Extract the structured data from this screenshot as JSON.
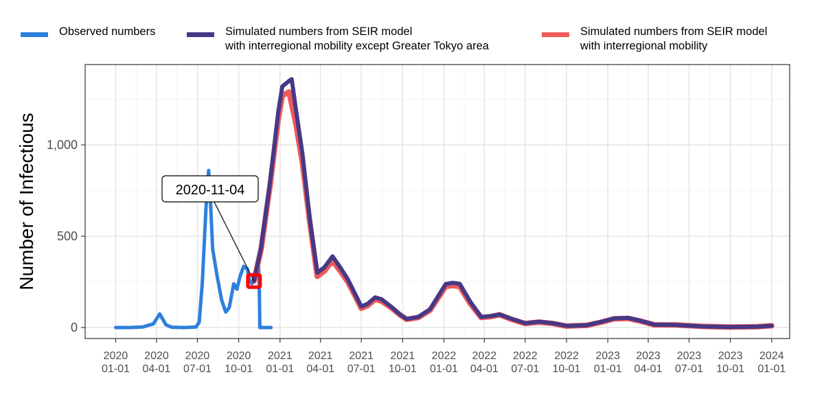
{
  "chart_data": {
    "type": "line",
    "title": "",
    "xlabel": "",
    "ylabel": "Number of Infectious",
    "xlim": [
      "2019-10-25",
      "2024-02-10"
    ],
    "ylim": [
      -60,
      1440
    ],
    "grid": true,
    "legend_position": "top",
    "y_ticks": [
      {
        "value": 0,
        "label": "0"
      },
      {
        "value": 500,
        "label": "500"
      },
      {
        "value": 1000,
        "label": "1,000"
      }
    ],
    "x_ticks": [
      {
        "date": "2020-01-01",
        "label1": "2020",
        "label2": "01-01"
      },
      {
        "date": "2020-04-01",
        "label1": "2020",
        "label2": "04-01"
      },
      {
        "date": "2020-07-01",
        "label1": "2020",
        "label2": "07-01"
      },
      {
        "date": "2020-10-01",
        "label1": "2020",
        "label2": "10-01"
      },
      {
        "date": "2021-01-01",
        "label1": "2021",
        "label2": "01-01"
      },
      {
        "date": "2021-04-01",
        "label1": "2021",
        "label2": "04-01"
      },
      {
        "date": "2021-07-01",
        "label1": "2021",
        "label2": "07-01"
      },
      {
        "date": "2021-10-01",
        "label1": "2021",
        "label2": "10-01"
      },
      {
        "date": "2022-01-01",
        "label1": "2022",
        "label2": "01-01"
      },
      {
        "date": "2022-04-01",
        "label1": "2022",
        "label2": "04-01"
      },
      {
        "date": "2022-07-01",
        "label1": "2022",
        "label2": "07-01"
      },
      {
        "date": "2022-10-01",
        "label1": "2022",
        "label2": "10-01"
      },
      {
        "date": "2023-01-01",
        "label1": "2023",
        "label2": "01-01"
      },
      {
        "date": "2023-04-01",
        "label1": "2023",
        "label2": "04-01"
      },
      {
        "date": "2023-07-01",
        "label1": "2023",
        "label2": "07-01"
      },
      {
        "date": "2023-10-01",
        "label1": "2023",
        "label2": "10-01"
      },
      {
        "date": "2024-01-01",
        "label1": "2024",
        "label2": "01-01"
      }
    ],
    "series": [
      {
        "name": "Observed numbers",
        "color": "#2E7FDC",
        "width": 5,
        "points": [
          [
            "2020-01-01",
            0
          ],
          [
            "2020-02-01",
            0
          ],
          [
            "2020-03-01",
            3
          ],
          [
            "2020-03-25",
            20
          ],
          [
            "2020-04-08",
            75
          ],
          [
            "2020-04-22",
            15
          ],
          [
            "2020-05-05",
            2
          ],
          [
            "2020-06-01",
            0
          ],
          [
            "2020-06-28",
            3
          ],
          [
            "2020-07-05",
            30
          ],
          [
            "2020-07-12",
            250
          ],
          [
            "2020-07-20",
            650
          ],
          [
            "2020-07-26",
            860
          ],
          [
            "2020-07-30",
            700
          ],
          [
            "2020-08-04",
            430
          ],
          [
            "2020-08-14",
            280
          ],
          [
            "2020-08-24",
            150
          ],
          [
            "2020-09-02",
            85
          ],
          [
            "2020-09-10",
            110
          ],
          [
            "2020-09-20",
            240
          ],
          [
            "2020-09-27",
            210
          ],
          [
            "2020-10-04",
            280
          ],
          [
            "2020-10-12",
            335
          ],
          [
            "2020-10-20",
            320
          ],
          [
            "2020-10-25",
            260
          ],
          [
            "2020-10-30",
            240
          ],
          [
            "2020-11-04",
            255
          ],
          [
            "2020-11-10",
            320
          ],
          [
            "2020-11-14",
            355
          ],
          [
            "2020-11-16",
            200
          ],
          [
            "2020-11-17",
            0
          ],
          [
            "2020-12-12",
            0
          ]
        ]
      },
      {
        "name": "Simulated numbers from SEIR model with interregional mobility",
        "color": "#EF5A5A",
        "width": 8,
        "points": [
          [
            "2020-11-04",
            255
          ],
          [
            "2020-11-20",
            430
          ],
          [
            "2020-12-10",
            780
          ],
          [
            "2020-12-28",
            1140
          ],
          [
            "2021-01-06",
            1270
          ],
          [
            "2021-01-21",
            1290
          ],
          [
            "2021-02-05",
            1120
          ],
          [
            "2021-02-20",
            900
          ],
          [
            "2021-03-08",
            580
          ],
          [
            "2021-03-25",
            280
          ],
          [
            "2021-04-10",
            310
          ],
          [
            "2021-04-28",
            365
          ],
          [
            "2021-05-15",
            310
          ],
          [
            "2021-06-01",
            250
          ],
          [
            "2021-06-20",
            160
          ],
          [
            "2021-07-01",
            105
          ],
          [
            "2021-07-15",
            120
          ],
          [
            "2021-08-01",
            155
          ],
          [
            "2021-08-15",
            145
          ],
          [
            "2021-09-05",
            110
          ],
          [
            "2021-09-25",
            70
          ],
          [
            "2021-10-10",
            45
          ],
          [
            "2021-11-05",
            55
          ],
          [
            "2021-12-01",
            95
          ],
          [
            "2021-12-20",
            165
          ],
          [
            "2022-01-05",
            225
          ],
          [
            "2022-01-20",
            230
          ],
          [
            "2022-02-05",
            225
          ],
          [
            "2022-03-01",
            130
          ],
          [
            "2022-03-25",
            55
          ],
          [
            "2022-04-15",
            60
          ],
          [
            "2022-05-05",
            70
          ],
          [
            "2022-06-01",
            45
          ],
          [
            "2022-07-01",
            22
          ],
          [
            "2022-08-01",
            30
          ],
          [
            "2022-09-01",
            22
          ],
          [
            "2022-10-01",
            8
          ],
          [
            "2022-11-15",
            12
          ],
          [
            "2022-12-15",
            28
          ],
          [
            "2023-01-15",
            48
          ],
          [
            "2023-02-15",
            50
          ],
          [
            "2023-03-15",
            35
          ],
          [
            "2023-04-15",
            15
          ],
          [
            "2023-06-01",
            15
          ],
          [
            "2023-08-01",
            6
          ],
          [
            "2023-10-01",
            3
          ],
          [
            "2023-12-01",
            5
          ],
          [
            "2024-01-01",
            10
          ]
        ]
      },
      {
        "name": "Simulated numbers from SEIR model with interregional mobility except Greater Tokyo area",
        "color": "#463886",
        "width": 6,
        "points": [
          [
            "2020-11-04",
            255
          ],
          [
            "2020-11-20",
            440
          ],
          [
            "2020-12-10",
            800
          ],
          [
            "2020-12-28",
            1180
          ],
          [
            "2021-01-06",
            1320
          ],
          [
            "2021-01-21",
            1350
          ],
          [
            "2021-01-27",
            1360
          ],
          [
            "2021-02-05",
            1200
          ],
          [
            "2021-02-20",
            950
          ],
          [
            "2021-03-08",
            600
          ],
          [
            "2021-03-25",
            300
          ],
          [
            "2021-04-10",
            330
          ],
          [
            "2021-04-28",
            390
          ],
          [
            "2021-05-15",
            330
          ],
          [
            "2021-06-01",
            265
          ],
          [
            "2021-06-20",
            170
          ],
          [
            "2021-07-01",
            115
          ],
          [
            "2021-07-15",
            130
          ],
          [
            "2021-08-01",
            165
          ],
          [
            "2021-08-15",
            155
          ],
          [
            "2021-09-05",
            115
          ],
          [
            "2021-09-25",
            72
          ],
          [
            "2021-10-10",
            47
          ],
          [
            "2021-11-05",
            58
          ],
          [
            "2021-12-01",
            100
          ],
          [
            "2021-12-20",
            175
          ],
          [
            "2022-01-05",
            238
          ],
          [
            "2022-01-20",
            245
          ],
          [
            "2022-02-05",
            240
          ],
          [
            "2022-03-01",
            140
          ],
          [
            "2022-03-25",
            58
          ],
          [
            "2022-04-15",
            63
          ],
          [
            "2022-05-05",
            72
          ],
          [
            "2022-06-01",
            48
          ],
          [
            "2022-07-01",
            24
          ],
          [
            "2022-08-01",
            32
          ],
          [
            "2022-09-01",
            24
          ],
          [
            "2022-10-01",
            9
          ],
          [
            "2022-11-15",
            13
          ],
          [
            "2022-12-15",
            30
          ],
          [
            "2023-01-15",
            50
          ],
          [
            "2023-02-15",
            53
          ],
          [
            "2023-03-15",
            37
          ],
          [
            "2023-04-15",
            16
          ],
          [
            "2023-06-01",
            14
          ],
          [
            "2023-08-01",
            6
          ],
          [
            "2023-10-01",
            3
          ],
          [
            "2023-12-01",
            5
          ],
          [
            "2024-01-01",
            10
          ]
        ]
      }
    ],
    "annotation": {
      "label": "2020-11-04",
      "date": "2020-11-04",
      "value": 255,
      "marker_color": "#FF0000"
    }
  },
  "legend": [
    {
      "color": "#2E7FDC",
      "lines": [
        "Observed numbers"
      ]
    },
    {
      "color": "#463886",
      "lines": [
        "Simulated numbers from SEIR model",
        "with interregional mobility except Greater Tokyo area"
      ]
    },
    {
      "color": "#EF5A5A",
      "lines": [
        "Simulated numbers from SEIR model",
        "with interregional mobility"
      ]
    }
  ]
}
